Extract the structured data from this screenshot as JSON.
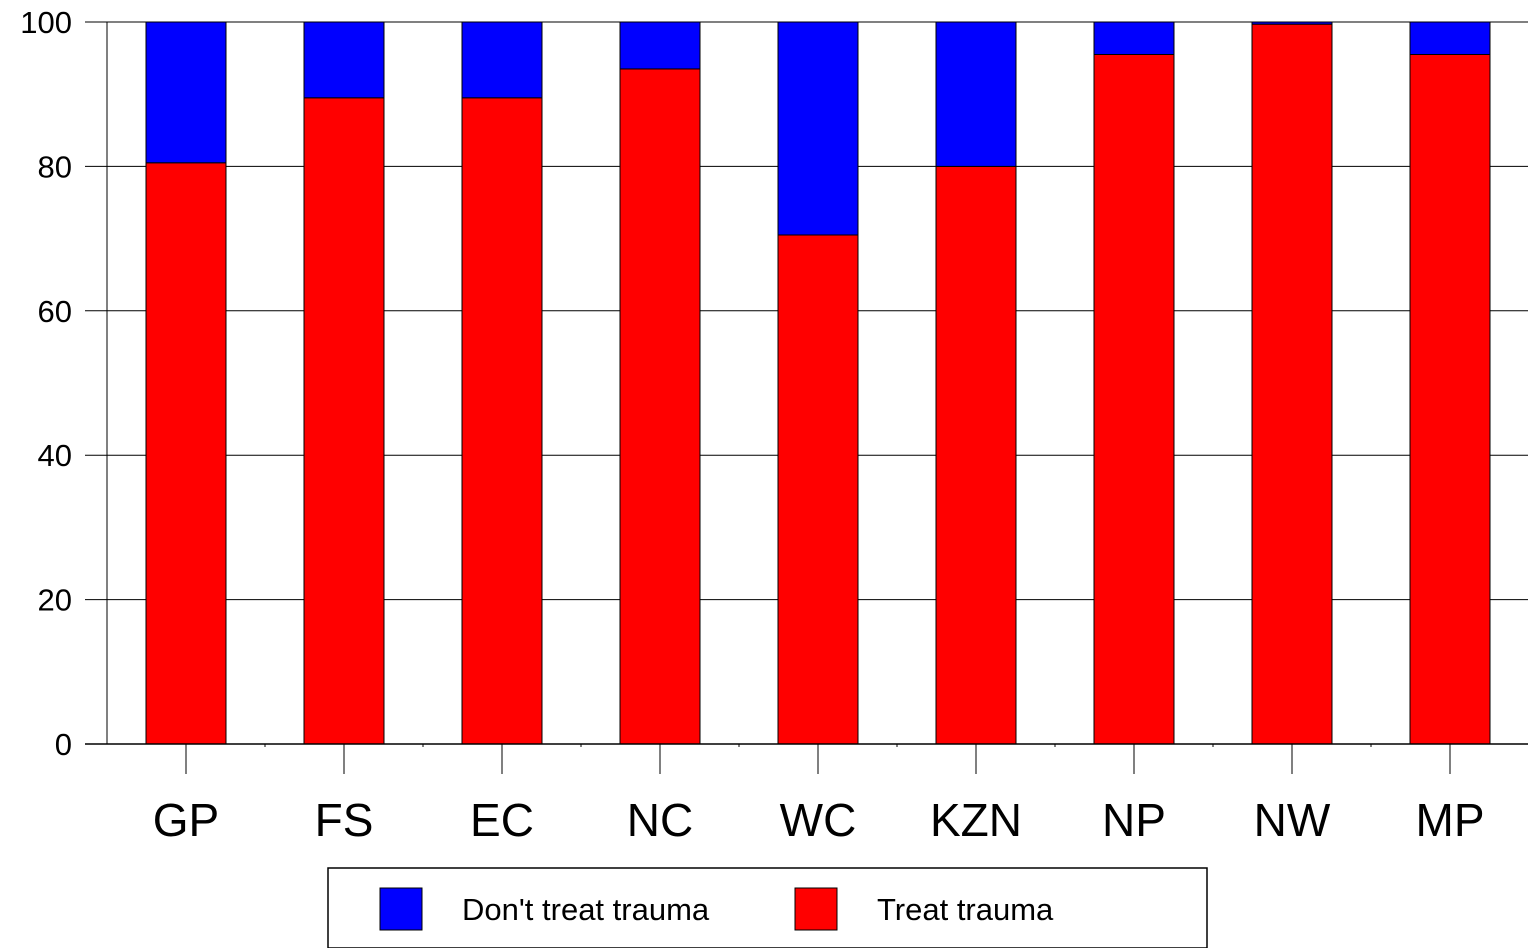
{
  "chart_data": {
    "type": "bar",
    "stacked": true,
    "categories": [
      "GP",
      "FS",
      "EC",
      "NC",
      "WC",
      "KZN",
      "NP",
      "NW",
      "MP"
    ],
    "series": [
      {
        "name": "Treat trauma",
        "color": "#ff0000",
        "values": [
          80.5,
          89.5,
          89.5,
          93.5,
          70.5,
          80,
          95.5,
          99.7,
          95.5
        ]
      },
      {
        "name": "Don't treat trauma",
        "color": "#0000ff",
        "values": [
          19.5,
          10.5,
          10.5,
          6.5,
          29.5,
          20,
          4.5,
          0.3,
          4.5
        ]
      }
    ],
    "yticks": [
      0,
      20,
      40,
      60,
      80,
      100
    ],
    "ylim": [
      0,
      100
    ],
    "grid": true,
    "legend": {
      "position": "bottom",
      "entries": [
        {
          "label": "Don't treat trauma",
          "color": "#0000ff"
        },
        {
          "label": "Treat trauma",
          "color": "#ff0000"
        }
      ]
    }
  }
}
